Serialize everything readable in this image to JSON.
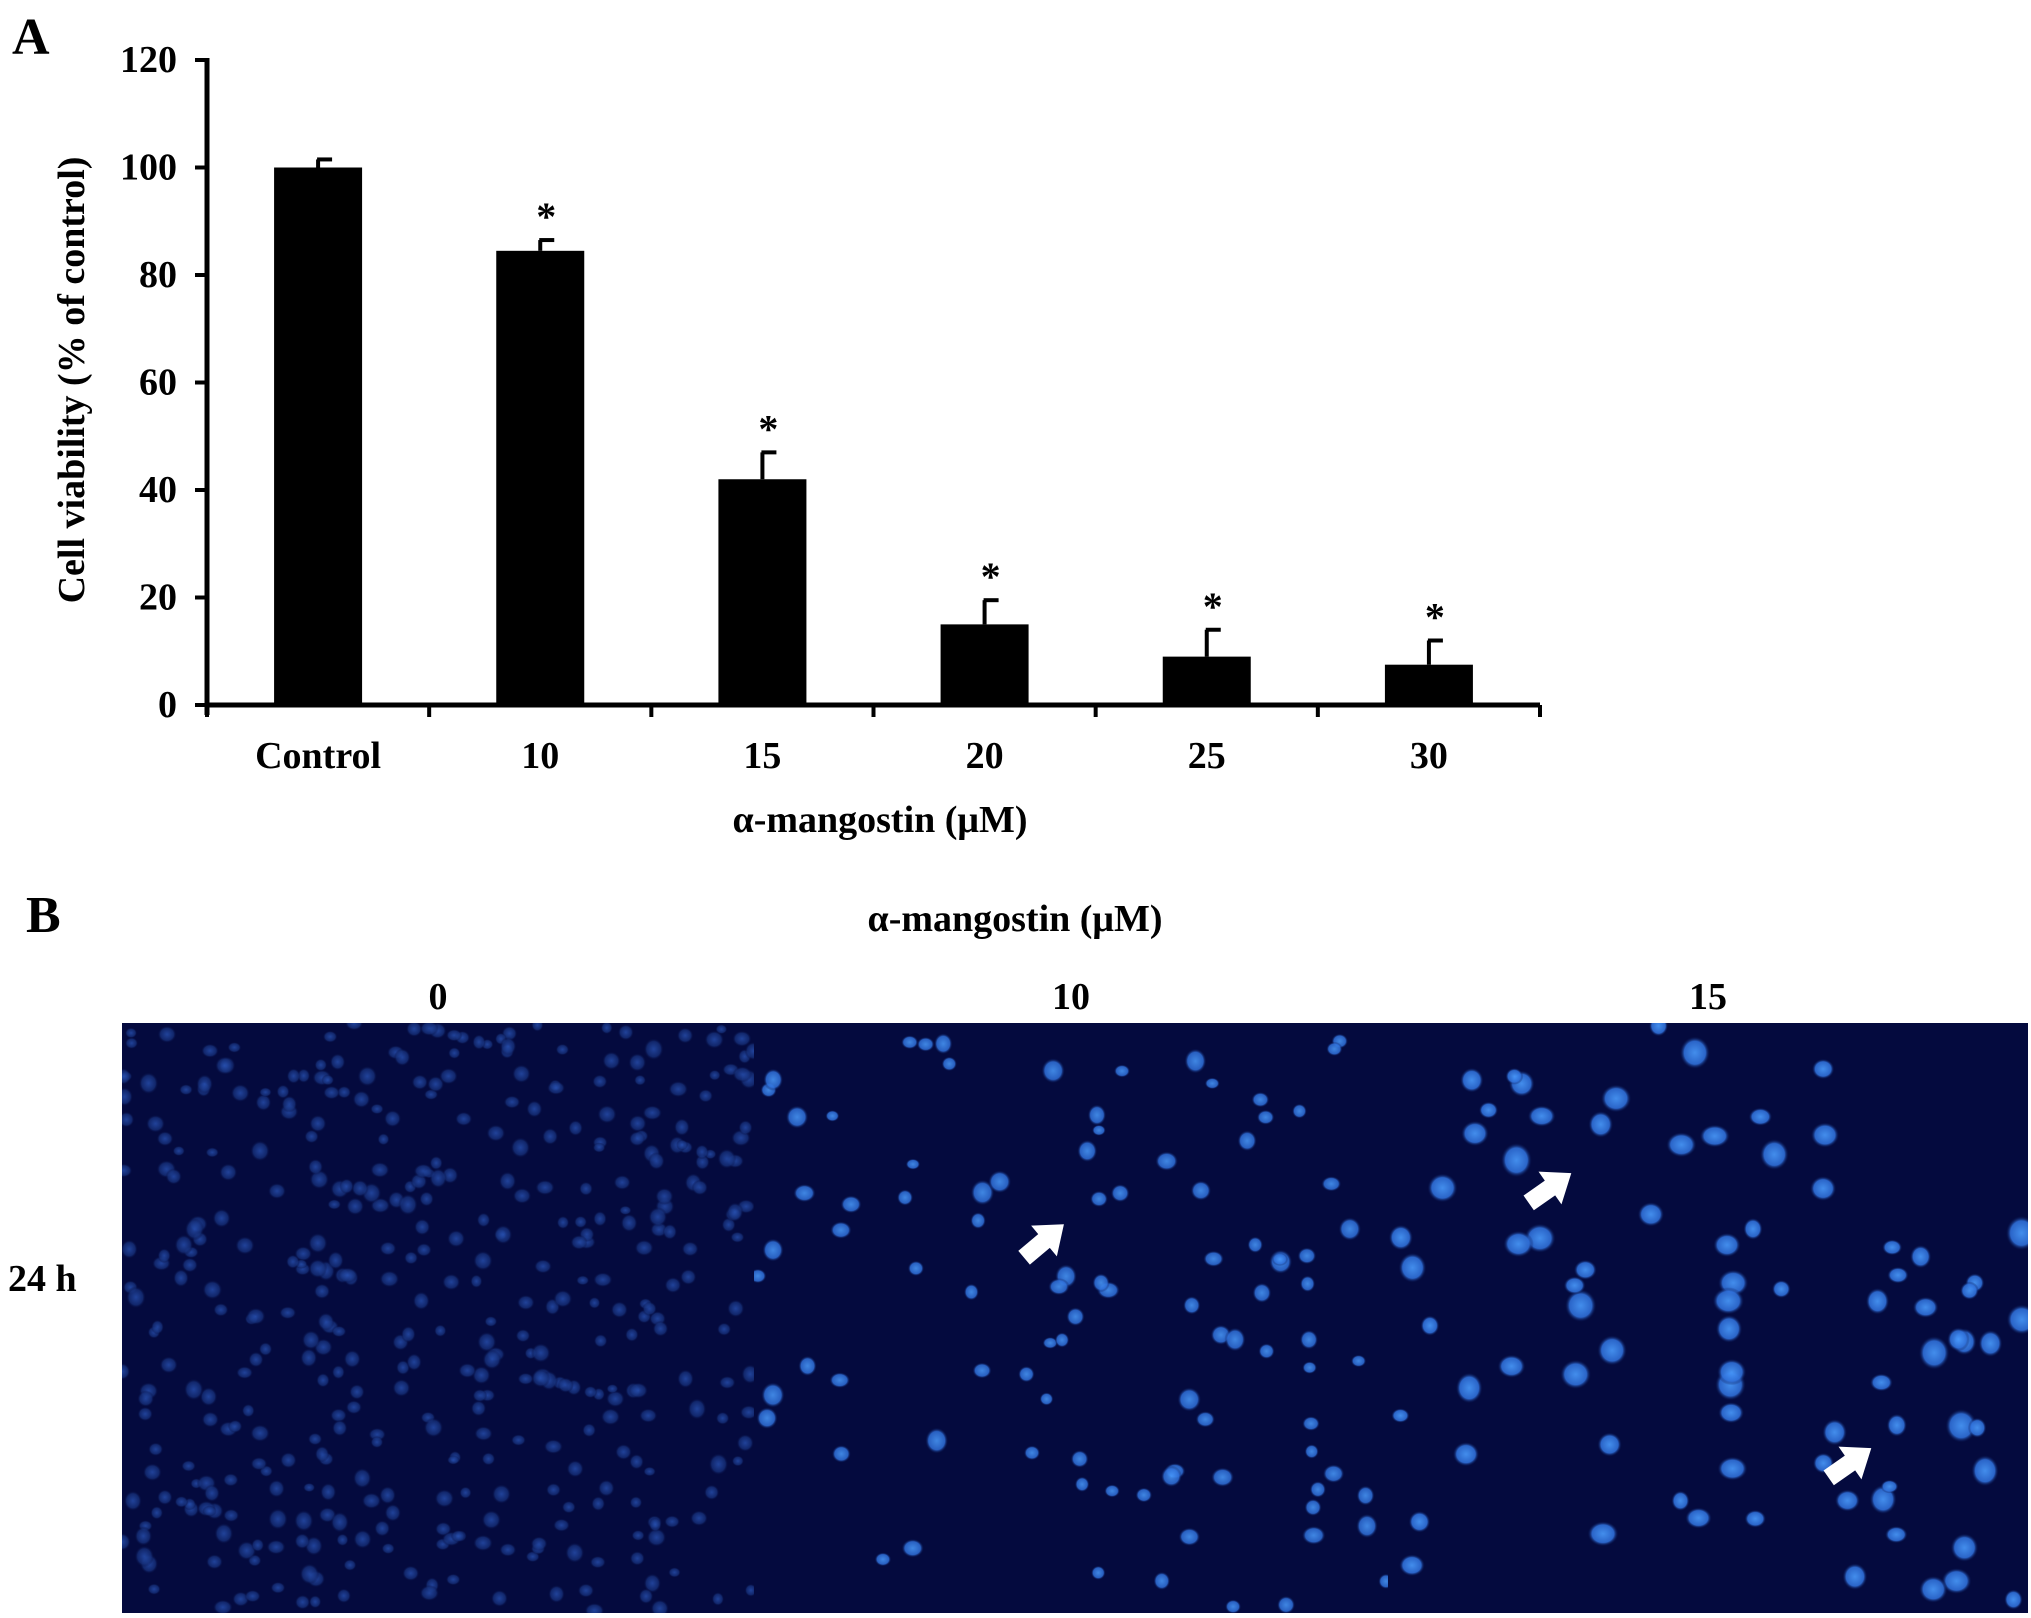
{
  "panel_a": {
    "letter": "A"
  },
  "panel_b": {
    "letter": "B",
    "title": "α-mangostin (μM)",
    "columns": [
      "0",
      "10",
      "15"
    ],
    "row_label": "24 h",
    "colors": {
      "background": "#040a3e",
      "cell": "#2f6fd8",
      "cell_bright": "#4a9cff",
      "arrow": "#ffffff"
    }
  },
  "chart_data": {
    "type": "bar",
    "categories": [
      "Control",
      "10",
      "15",
      "20",
      "25",
      "30"
    ],
    "values": [
      100,
      84.5,
      42,
      15,
      9,
      7.5
    ],
    "errors": [
      1.5,
      2,
      5,
      4.5,
      5,
      4.5
    ],
    "significance": [
      "",
      "*",
      "*",
      "*",
      "*",
      "*"
    ],
    "xlabel": "α-mangostin (μM)",
    "ylabel": "Cell viability (% of control)",
    "ylim": [
      0,
      120
    ],
    "yticks": [
      0,
      20,
      40,
      60,
      80,
      100,
      120
    ],
    "grid": false,
    "bar_color": "#000000"
  }
}
